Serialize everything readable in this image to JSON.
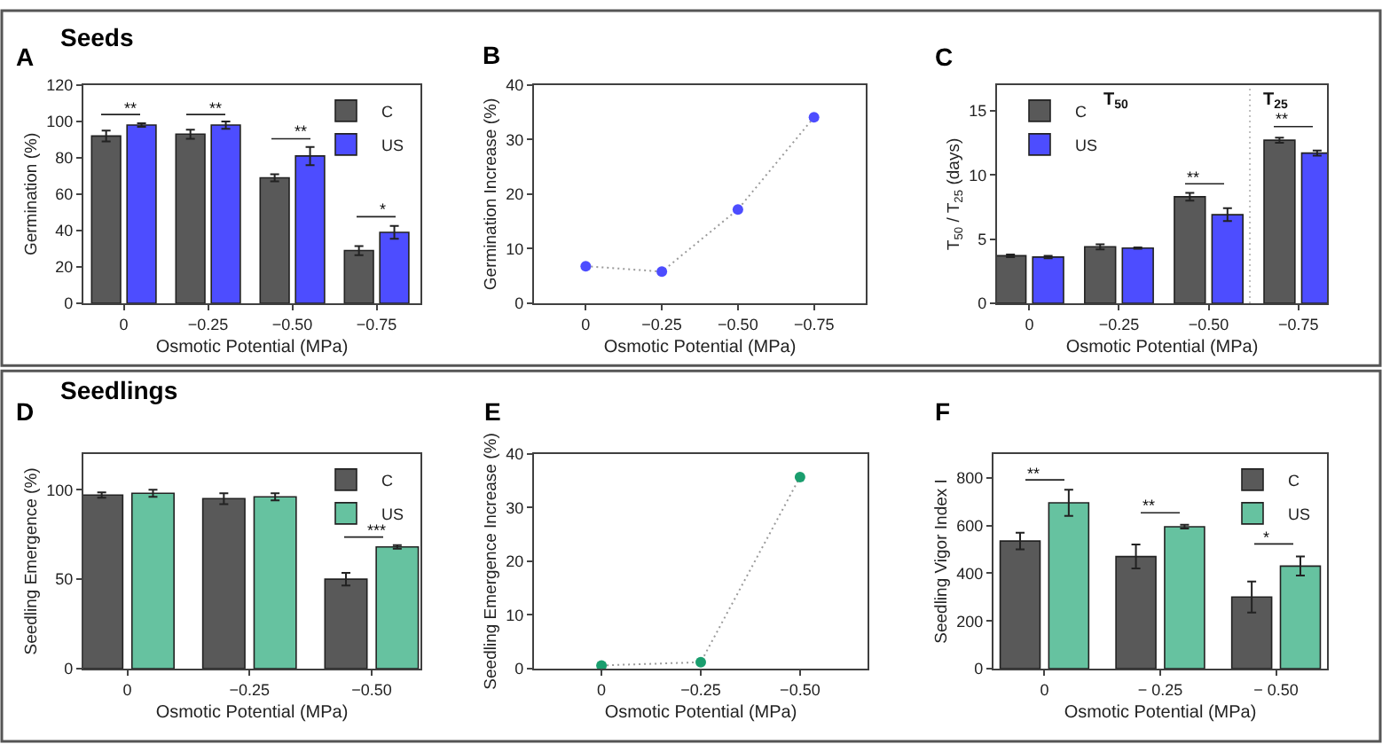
{
  "chart_data": [
    {
      "type": "bar",
      "title": "A",
      "subtitle": "Seeds",
      "xlabel": "Osmotic Potential (MPa)",
      "ylabel": "Germination (%)",
      "x": [
        0,
        -0.25,
        -0.5,
        -0.75
      ],
      "xlim": [
        0.12,
        -0.88
      ],
      "xticks": [
        0,
        {
          "value": -0.25,
          "label": "−0.25"
        },
        {
          "value": -0.5,
          "label": "−0.50"
        },
        {
          "value": -0.75,
          "label": "−0.75"
        }
      ],
      "ylim": [
        0,
        120
      ],
      "yticks": [
        0,
        20,
        40,
        60,
        80,
        100,
        120
      ],
      "legend": "top right",
      "series": [
        {
          "name": "C",
          "color": "#595959",
          "values": [
            92,
            93,
            69,
            29
          ],
          "errors": [
            3,
            2.5,
            2,
            2.5
          ]
        },
        {
          "name": "US",
          "color": "#4d4dff",
          "values": [
            98,
            98,
            81,
            39
          ],
          "errors": [
            1,
            2,
            5,
            3.5
          ]
        }
      ],
      "annotations": [
        "**",
        "**",
        "**",
        "*"
      ]
    },
    {
      "type": "line",
      "title": "B",
      "xlabel": "Osmotic Potential (MPa)",
      "ylabel": "Germination Increase (%)",
      "x": [
        0,
        -0.25,
        -0.5,
        -0.75
      ],
      "xlim": [
        0.17,
        -0.92
      ],
      "xticks": [
        0,
        {
          "value": -0.25,
          "label": "−0.25"
        },
        {
          "value": -0.5,
          "label": "−0.50"
        },
        {
          "value": -0.75,
          "label": "−0.75"
        }
      ],
      "ylim": [
        0,
        40
      ],
      "yticks": [
        0,
        10,
        20,
        30,
        40
      ],
      "marker": "circle",
      "line_style": "dotted",
      "series": [
        {
          "color": "#4d4dff",
          "values": [
            6.8,
            5.8,
            17.2,
            34.1
          ]
        }
      ]
    },
    {
      "type": "bar",
      "title": "C",
      "xlabel": "Osmotic Potential (MPa)",
      "ylabel": "T$_{50}$ / T$_{25}$ (days)",
      "x": [
        0,
        -0.25,
        -0.5,
        -0.75
      ],
      "xlim": [
        0.09,
        -0.83
      ],
      "xticks": [
        0,
        {
          "value": -0.25,
          "label": "−0.25"
        },
        {
          "value": -0.5,
          "label": "−0.50"
        },
        {
          "value": -0.75,
          "label": "−0.75"
        }
      ],
      "ylim": [
        0,
        17
      ],
      "yticks": [
        0,
        5,
        10,
        15
      ],
      "legend": "top left",
      "series": [
        {
          "name": "C",
          "color": "#595959",
          "values": [
            3.7,
            4.4,
            8.3,
            12.7
          ],
          "errors": [
            0.1,
            0.2,
            0.3,
            0.2
          ]
        },
        {
          "name": "US",
          "color": "#4d4dff",
          "values": [
            3.6,
            4.3,
            6.9,
            11.7
          ],
          "errors": [
            0.1,
            0.05,
            0.5,
            0.2
          ]
        }
      ],
      "ref_lines": [
        {
          "axis": "x",
          "value": -0.615,
          "color": "#bfbfbf",
          "line_style": "dotted"
        }
      ],
      "annotations": [
        "T$_{50}$",
        "T$_{25}$",
        "**",
        "**"
      ]
    },
    {
      "type": "bar",
      "title": "D",
      "subtitle": "Seedlings",
      "xlabel": "Osmotic Potential (MPa)",
      "ylabel": "Seedling Emergence (%)",
      "x": [
        0,
        -0.25,
        -0.5
      ],
      "xlim": [
        0.09,
        -0.6
      ],
      "xticks": [
        0,
        {
          "value": -0.25,
          "label": "−0.25"
        },
        {
          "value": -0.5,
          "label": "−0.50"
        }
      ],
      "ylim": [
        0,
        120
      ],
      "yticks": [
        0,
        50,
        100
      ],
      "legend": "top right",
      "series": [
        {
          "name": "C",
          "color": "#595959",
          "values": [
            97,
            95,
            50
          ],
          "errors": [
            1.5,
            3,
            3.5
          ]
        },
        {
          "name": "US",
          "color": "#66c2a0",
          "values": [
            98,
            96,
            68
          ],
          "errors": [
            2,
            2,
            1
          ]
        }
      ],
      "annotations": [
        "***"
      ]
    },
    {
      "type": "line",
      "title": "E",
      "xlabel": "Osmotic Potential (MPa)",
      "ylabel": "Seedling Emergence Increase (%)",
      "x": [
        0,
        -0.25,
        -0.5
      ],
      "xlim": [
        0.17,
        -0.67
      ],
      "xticks": [
        0,
        {
          "value": -0.25,
          "label": "−0.25"
        },
        {
          "value": -0.5,
          "label": "−0.50"
        }
      ],
      "ylim": [
        0,
        40
      ],
      "yticks": [
        0,
        10,
        20,
        30,
        40
      ],
      "marker": "circle",
      "line_style": "dotted",
      "series": [
        {
          "color": "#1a9e6e",
          "values": [
            0.6,
            1.2,
            35.7
          ]
        }
      ]
    },
    {
      "type": "bar",
      "title": "F",
      "xlabel": "Osmotic Potential (MPa)",
      "ylabel": "Seedling Vigor Index I",
      "x": [
        0,
        -0.25,
        -0.5
      ],
      "xlim": [
        0.11,
        -0.61
      ],
      "xticks": [
        0,
        {
          "value": -0.25,
          "label": "− 0.25"
        },
        {
          "value": -0.5,
          "label": "− 0.50"
        }
      ],
      "ylim": [
        0,
        900
      ],
      "yticks": [
        0,
        200,
        400,
        600,
        800
      ],
      "legend": "top right",
      "series": [
        {
          "name": "C",
          "color": "#595959",
          "values": [
            535,
            470,
            300
          ],
          "errors": [
            35,
            50,
            65
          ]
        },
        {
          "name": "US",
          "color": "#66c2a0",
          "values": [
            695,
            595,
            430
          ],
          "errors": [
            55,
            8,
            40
          ]
        }
      ],
      "annotations": [
        "**",
        "**",
        "*"
      ]
    }
  ]
}
